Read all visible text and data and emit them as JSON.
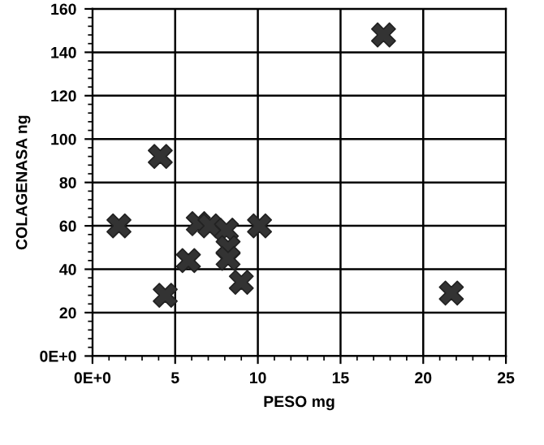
{
  "chart_data": {
    "type": "scatter",
    "xlabel": "PESO mg",
    "ylabel": "COLAGENASA ng",
    "x": [
      1.6,
      4.1,
      4.4,
      5.8,
      6.4,
      7.1,
      8.1,
      8.2,
      8.2,
      9.0,
      10.1,
      17.6,
      21.7
    ],
    "series": [
      {
        "color": "#333333",
        "values": [
          60,
          92,
          28,
          44,
          61,
          60,
          58,
          50,
          45,
          34,
          60,
          148,
          29
        ]
      }
    ],
    "marker": "cross",
    "grid": true,
    "xlim": [
      0,
      25
    ],
    "xticks": [
      {
        "value": 0,
        "label": "0E+0"
      },
      5,
      10,
      15,
      20,
      25
    ],
    "ylim": [
      0,
      160
    ],
    "yticks": [
      {
        "value": 0,
        "label": "0E+0"
      },
      20,
      40,
      60,
      80,
      100,
      120,
      140,
      160
    ]
  }
}
